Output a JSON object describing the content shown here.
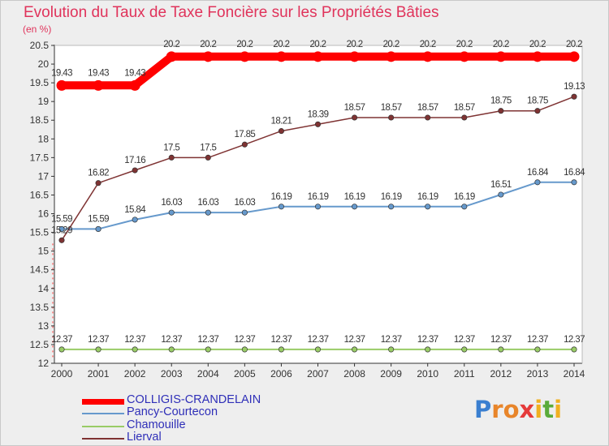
{
  "title": "Evolution du Taux de Taxe Foncière sur les Propriétés Bâties",
  "unit": "(en %)",
  "logo": {
    "text": "Proxiti",
    "letter_colors": [
      "#3a7fd0",
      "#e8852a",
      "#e8852a",
      "#e53a3a",
      "#f0b020",
      "#5aab3a",
      "#f0b020"
    ]
  },
  "chart_data": {
    "type": "line",
    "title": "Evolution du Taux de Taxe Foncière sur les Propriétés Bâties",
    "ylabel": "(en %)",
    "xlabel": "",
    "ylim": [
      12,
      20.5
    ],
    "yticks": [
      "12",
      "12.5",
      "13",
      "13.5",
      "14",
      "14.5",
      "15",
      "15.5",
      "16",
      "16.5",
      "17",
      "17.5",
      "18",
      "18.5",
      "19",
      "19.5",
      "20",
      "20.5"
    ],
    "x": [
      "2000",
      "2001",
      "2002",
      "2003",
      "2004",
      "2005",
      "2006",
      "2007",
      "2008",
      "2009",
      "2010",
      "2011",
      "2012",
      "2013",
      "2014"
    ],
    "series": [
      {
        "name": "COLLIGIS-CRANDELAIN",
        "color": "#ff0000",
        "values": [
          19.43,
          19.43,
          19.43,
          20.2,
          20.2,
          20.2,
          20.2,
          20.2,
          20.2,
          20.2,
          20.2,
          20.2,
          20.2,
          20.2,
          20.2
        ],
        "labels": [
          "19.43",
          "19.43",
          "19.43",
          "20.2",
          "20.2",
          "20.2",
          "20.2",
          "20.2",
          "20.2",
          "20.2",
          "20.2",
          "20.2",
          "20.2",
          "20.2",
          "20.2"
        ]
      },
      {
        "name": "Pancy-Courtecon",
        "color": "#6699cc",
        "values": [
          15.59,
          15.59,
          15.84,
          16.03,
          16.03,
          16.03,
          16.19,
          16.19,
          16.19,
          16.19,
          16.19,
          16.19,
          16.51,
          16.84,
          16.84
        ],
        "labels": [
          "15.59",
          "15.59",
          "15.84",
          "16.03",
          "16.03",
          "16.03",
          "16.19",
          "16.19",
          "16.19",
          "16.19",
          "16.19",
          "16.19",
          "16.51",
          "16.84",
          "16.84"
        ]
      },
      {
        "name": "Chamouille",
        "color": "#99cc66",
        "values": [
          12.37,
          12.37,
          12.37,
          12.37,
          12.37,
          12.37,
          12.37,
          12.37,
          12.37,
          12.37,
          12.37,
          12.37,
          12.37,
          12.37,
          12.37
        ],
        "labels": [
          "12.37",
          "12.37",
          "12.37",
          "12.37",
          "12.37",
          "12.37",
          "12.37",
          "12.37",
          "12.37",
          "12.37",
          "12.37",
          "12.37",
          "12.37",
          "12.37",
          "12.37"
        ]
      },
      {
        "name": "Lierval",
        "color": "#7f3333",
        "values": [
          15.29,
          16.82,
          17.16,
          17.5,
          17.5,
          17.85,
          18.21,
          18.39,
          18.57,
          18.57,
          18.57,
          18.57,
          18.75,
          18.75,
          19.13
        ],
        "labels": [
          "15.29",
          "16.82",
          "17.16",
          "17.5",
          "17.5",
          "17.85",
          "18.21",
          "18.39",
          "18.57",
          "18.57",
          "18.57",
          "18.57",
          "18.75",
          "18.75",
          "19.13"
        ]
      }
    ],
    "legend": "bottom-left",
    "grid": false
  }
}
